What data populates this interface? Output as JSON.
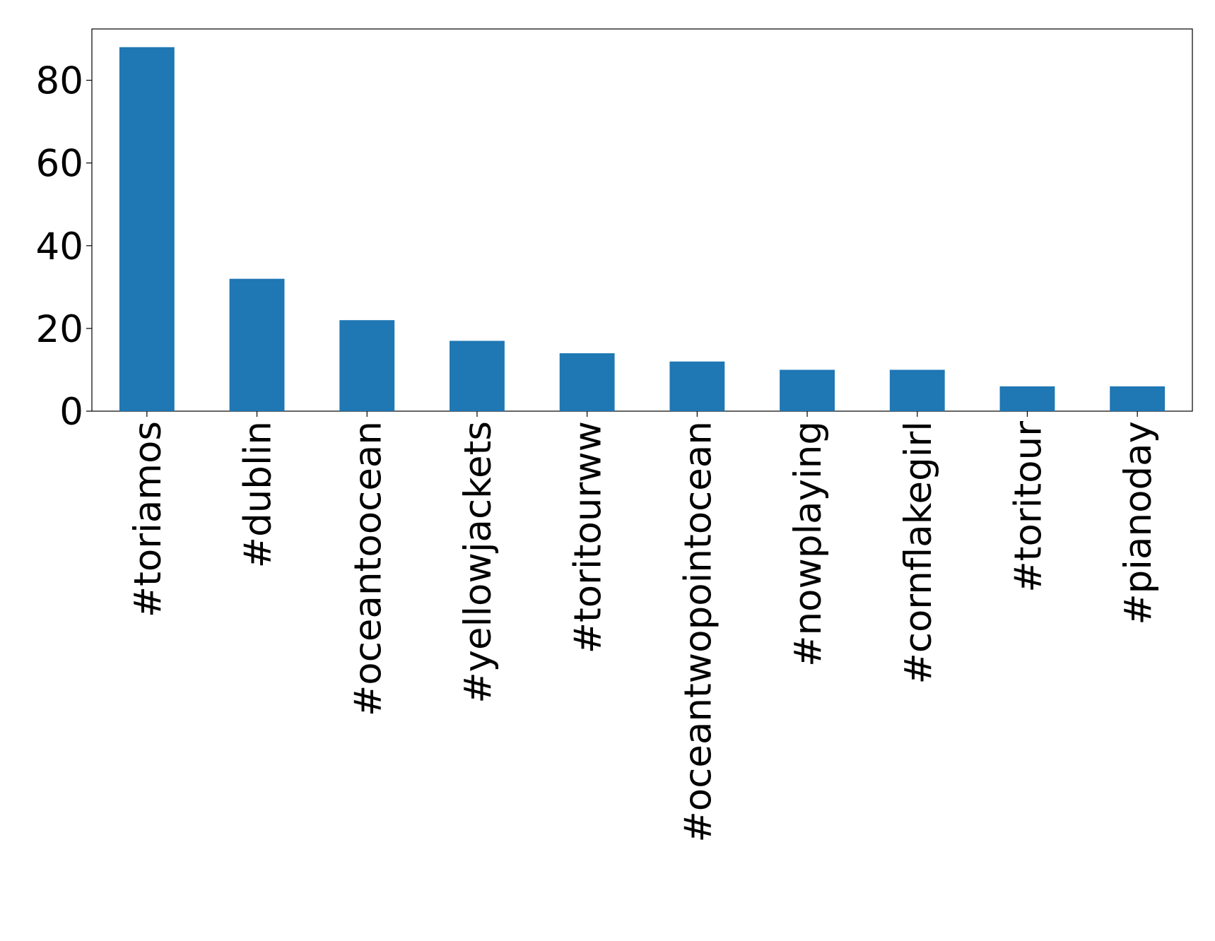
{
  "chart_data": {
    "type": "bar",
    "categories": [
      "#toriamos",
      "#dublin",
      "#oceantoocean",
      "#yellowjackets",
      "#toritourww",
      "#oceantwopointocean",
      "#nowplaying",
      "#cornflakegirl",
      "#toritour",
      "#pianoday"
    ],
    "values": [
      88,
      32,
      22,
      17,
      14,
      12,
      10,
      10,
      6,
      6
    ],
    "color": "#1f77b4",
    "ylim": [
      0,
      92.4
    ],
    "yticks": [
      0,
      20,
      40,
      60,
      80
    ],
    "grid": false
  }
}
